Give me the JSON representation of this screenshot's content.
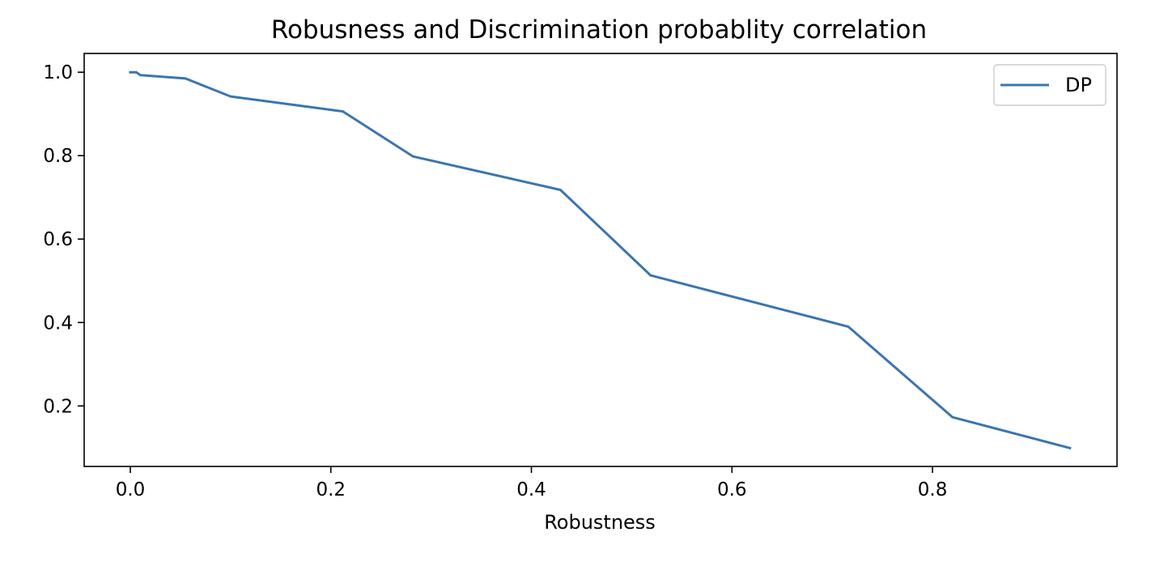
{
  "chart_data": {
    "type": "line",
    "title": "Robusness and Discrimination probablity correlation",
    "xlabel": "Robustness",
    "ylabel": "",
    "xlim": [
      -0.046,
      0.984
    ],
    "ylim": [
      0.055,
      1.045
    ],
    "xticks": [
      {
        "value": 0.0,
        "label": "0.0"
      },
      {
        "value": 0.2,
        "label": "0.2"
      },
      {
        "value": 0.4,
        "label": "0.4"
      },
      {
        "value": 0.6,
        "label": "0.6"
      },
      {
        "value": 0.8,
        "label": "0.8"
      }
    ],
    "yticks": [
      {
        "value": 0.2,
        "label": "0.2"
      },
      {
        "value": 0.4,
        "label": "0.4"
      },
      {
        "value": 0.6,
        "label": "0.6"
      },
      {
        "value": 0.8,
        "label": "0.8"
      },
      {
        "value": 1.0,
        "label": "1.0"
      }
    ],
    "grid": false,
    "legend": {
      "position": "top-right"
    },
    "series": [
      {
        "name": "DP",
        "color": "#3b75af",
        "x": [
          0.0,
          0.006,
          0.01,
          0.055,
          0.1,
          0.212,
          0.282,
          0.429,
          0.519,
          0.716,
          0.82,
          0.937
        ],
        "y": [
          1.0,
          1.0,
          0.993,
          0.985,
          0.942,
          0.906,
          0.798,
          0.718,
          0.513,
          0.39,
          0.173,
          0.099
        ]
      }
    ]
  }
}
